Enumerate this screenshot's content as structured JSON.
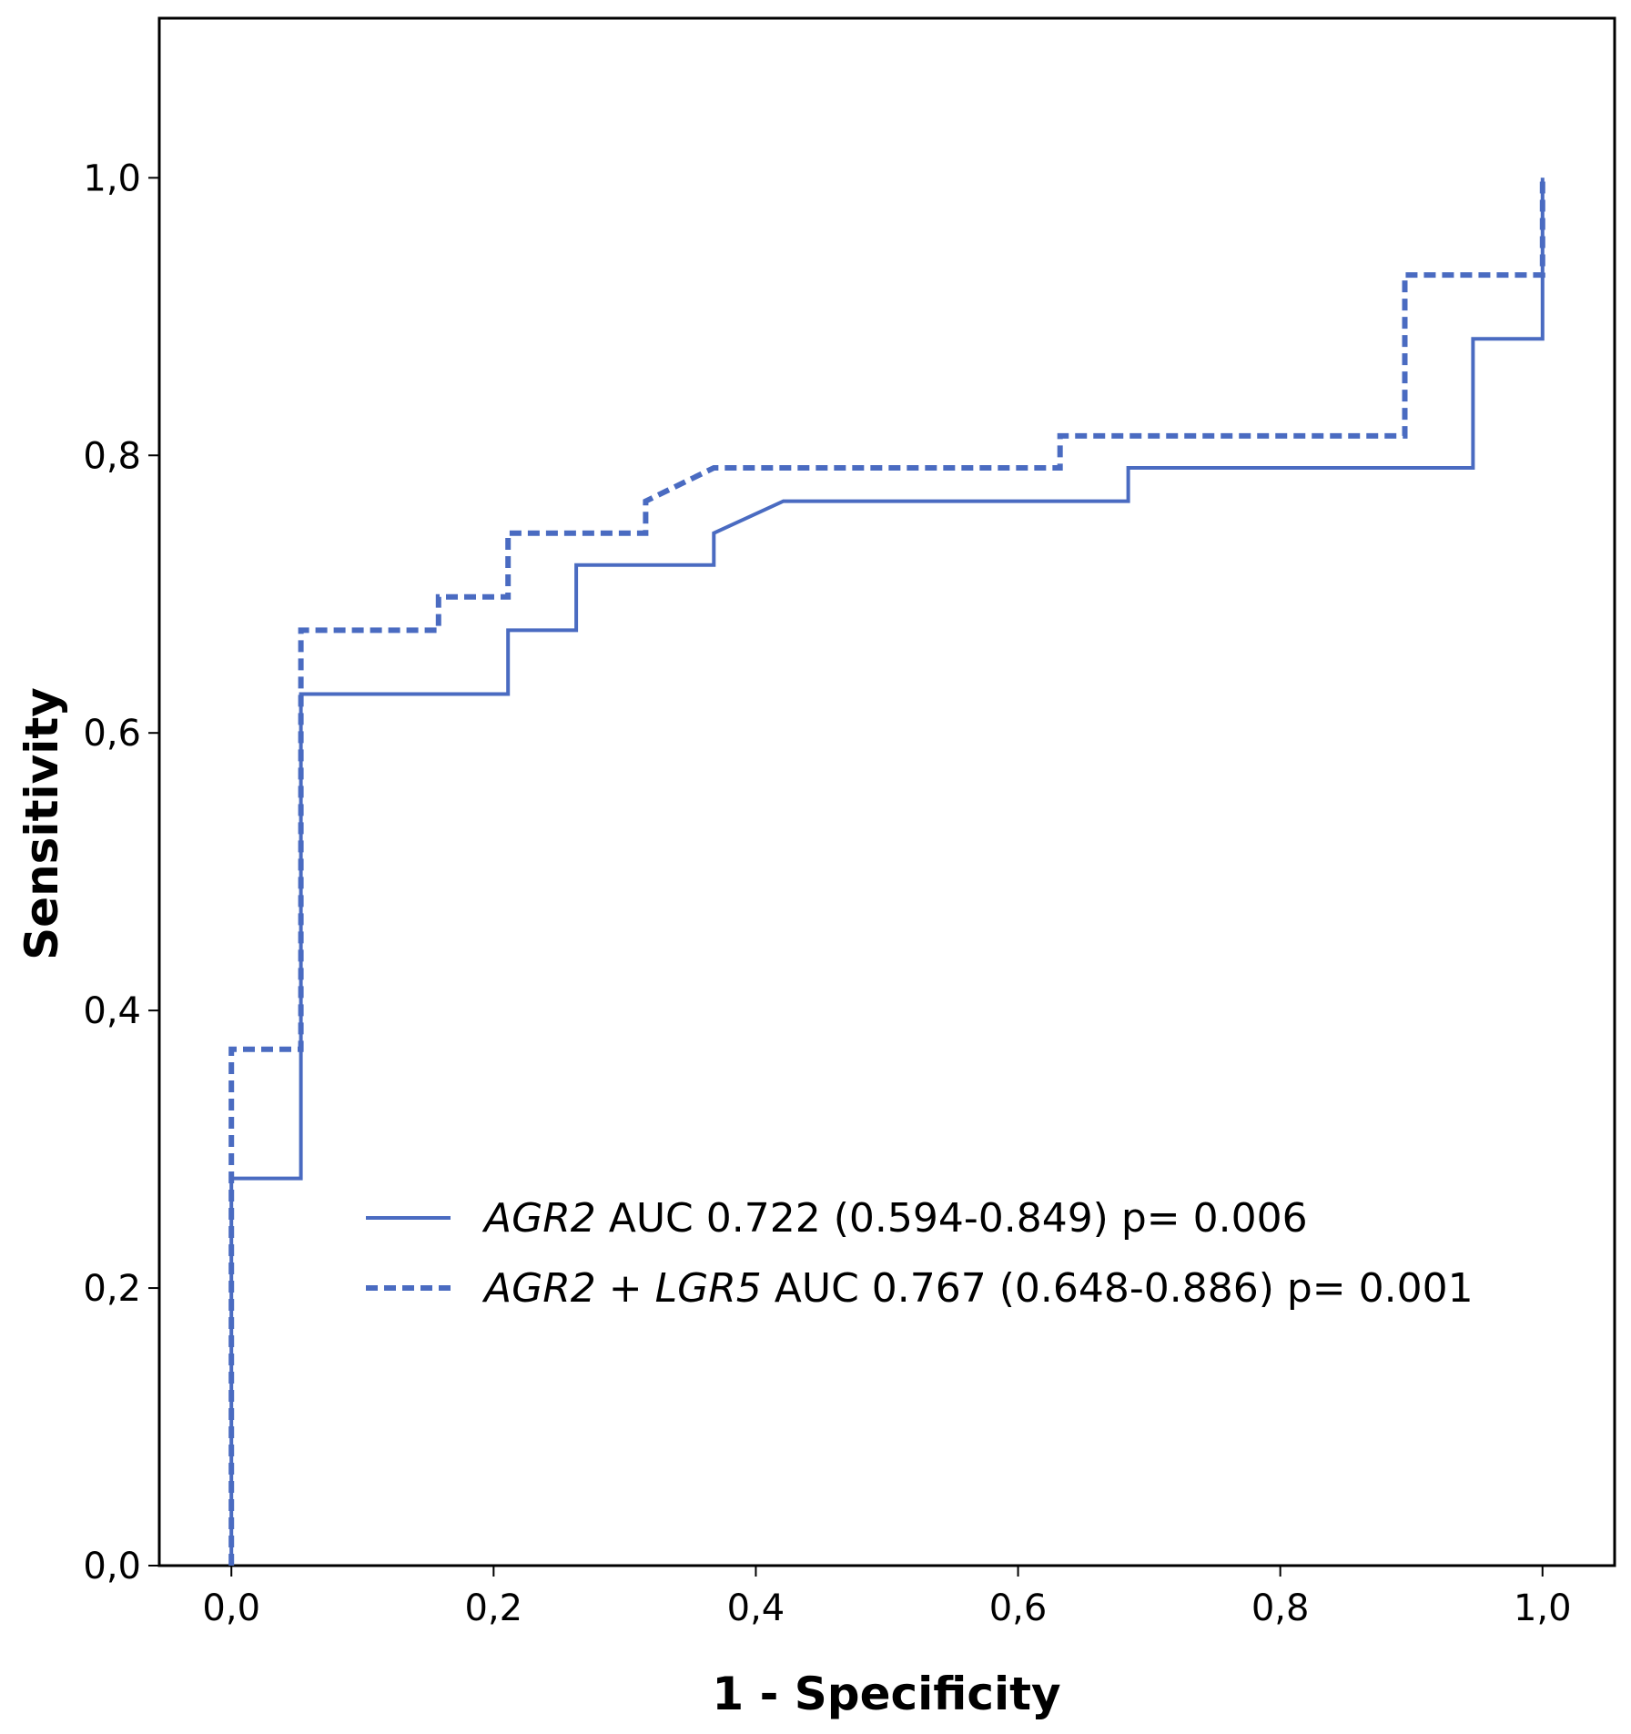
{
  "chart_data": {
    "type": "line",
    "subtype": "roc-step",
    "xlabel": "1 - Specificity",
    "ylabel": "Sensitivity",
    "xlim": [
      -0.055,
      1.055
    ],
    "ylim": [
      0,
      1.115
    ],
    "xticks": [
      0.0,
      0.2,
      0.4,
      0.6,
      0.8,
      1.0
    ],
    "yticks": [
      0.0,
      0.2,
      0.4,
      0.6,
      0.8,
      1.0
    ],
    "xtick_labels": [
      "0,0",
      "0,2",
      "0,4",
      "0,6",
      "0,8",
      "1,0"
    ],
    "ytick_labels": [
      "0,0",
      "0,2",
      "0,4",
      "0,6",
      "0,8",
      "1,0"
    ],
    "grid": false,
    "legend_position": "center-right",
    "line_color": "#4a6bc1",
    "series": [
      {
        "name_italic": "AGR2",
        "name_rest": " AUC 0.722 (0.594-0.849) p= 0.006",
        "style": "solid",
        "points": [
          [
            0.0,
            0.0
          ],
          [
            0.0,
            0.279
          ],
          [
            0.053,
            0.279
          ],
          [
            0.053,
            0.628
          ],
          [
            0.211,
            0.628
          ],
          [
            0.211,
            0.674
          ],
          [
            0.263,
            0.674
          ],
          [
            0.263,
            0.721
          ],
          [
            0.368,
            0.721
          ],
          [
            0.368,
            0.744
          ],
          [
            0.421,
            0.767
          ],
          [
            0.684,
            0.767
          ],
          [
            0.684,
            0.791
          ],
          [
            0.947,
            0.791
          ],
          [
            0.947,
            0.884
          ],
          [
            1.0,
            0.884
          ],
          [
            1.0,
            1.0
          ]
        ]
      },
      {
        "name_italic": "AGR2",
        "name_mid": " + ",
        "name_italic2": "LGR5",
        "name_rest": " AUC 0.767 (0.648-0.886) p= 0.001",
        "style": "dashed",
        "points": [
          [
            0.0,
            0.0
          ],
          [
            0.0,
            0.372
          ],
          [
            0.053,
            0.372
          ],
          [
            0.053,
            0.674
          ],
          [
            0.158,
            0.674
          ],
          [
            0.158,
            0.698
          ],
          [
            0.211,
            0.698
          ],
          [
            0.211,
            0.744
          ],
          [
            0.316,
            0.744
          ],
          [
            0.316,
            0.767
          ],
          [
            0.368,
            0.791
          ],
          [
            0.632,
            0.791
          ],
          [
            0.632,
            0.814
          ],
          [
            0.895,
            0.814
          ],
          [
            0.895,
            0.93
          ],
          [
            1.0,
            0.93
          ],
          [
            1.0,
            1.0
          ]
        ]
      }
    ]
  }
}
